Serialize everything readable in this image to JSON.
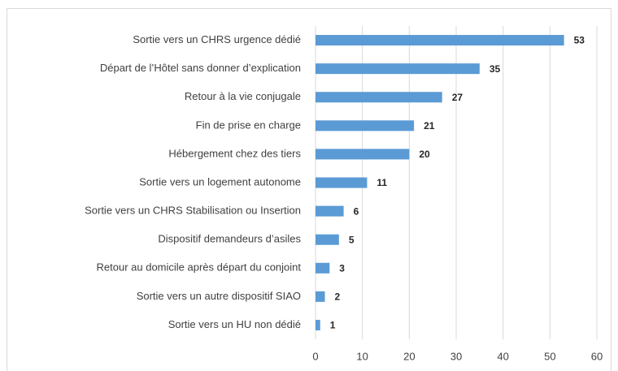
{
  "chart_data": {
    "type": "bar",
    "orientation": "horizontal",
    "categories": [
      "Sortie vers un CHRS urgence dédié",
      "Départ de l’Hôtel sans donner d’explication",
      "Retour à la vie conjugale",
      "Fin de prise en charge",
      "Hébergement chez des tiers",
      "Sortie vers un logement autonome",
      "Sortie vers un CHRS Stabilisation ou Insertion",
      "Dispositif demandeurs d’asiles",
      "Retour au domicile après départ du conjoint",
      "Sortie vers un autre dispositif SIAO",
      "Sortie vers un HU non dédié"
    ],
    "values": [
      53,
      35,
      27,
      21,
      20,
      11,
      6,
      5,
      3,
      2,
      1
    ],
    "color": "#5b9bd5",
    "xlim": [
      0,
      60
    ],
    "xticks": [
      0,
      10,
      20,
      30,
      40,
      50,
      60
    ],
    "grid": true
  }
}
